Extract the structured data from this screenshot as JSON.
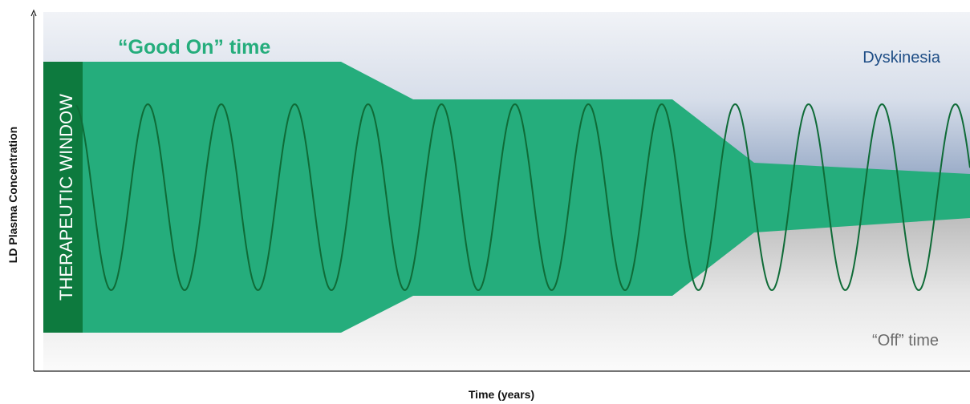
{
  "diagram": {
    "y_axis_label": "LD Plasma Concentration",
    "x_axis_label": "Time (years)",
    "good_on_label": "“Good On” time",
    "dyskinesia_label": "Dyskinesia",
    "off_label": "“Off” time",
    "window_label": "THERAPEUTIC WINDOW",
    "colors": {
      "window_green": "#25ad7c",
      "window_bar": "#0d7a3e",
      "wave_line": "#0f6b37",
      "good_on_text": "#25ad7c",
      "dyskinesia_top": "#f0f2f7",
      "dyskinesia_bottom": "#5b7aa5",
      "dyskinesia_text": "#1f4e86",
      "off_top": "#b9b9b9",
      "off_bottom": "#ffffff",
      "off_text": "#6a6a6a"
    }
  }
}
